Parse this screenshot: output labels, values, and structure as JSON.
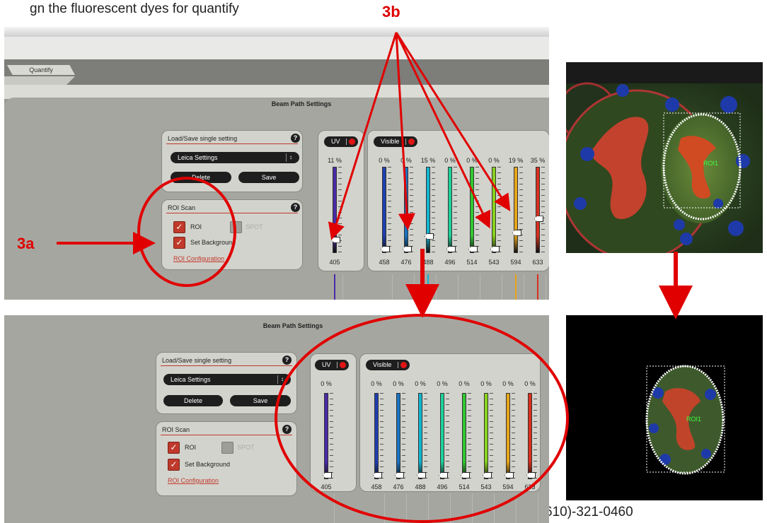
{
  "caption": {
    "top": "gn the    fluorescent dyes for quantify",
    "phone": "610)-321-0460"
  },
  "annotations": {
    "label_3a": "3a",
    "label_3b": "3b"
  },
  "app": {
    "tab_label": "Quantify"
  },
  "beam_path": {
    "title": "Beam Path Settings",
    "load_save": {
      "header": "Load/Save single setting",
      "help": "?",
      "dropdown_value": "Leica Settings",
      "dropdown_arrow": "↕",
      "delete_label": "Delete",
      "save_label": "Save"
    },
    "roi_scan": {
      "header": "ROI Scan",
      "help": "?",
      "roi_label": "ROI",
      "spot_label": "SPOT",
      "background_label": "Set Background",
      "config_link": "ROI Configuration",
      "roi_checked": true,
      "spot_checked": false,
      "background_checked": true
    },
    "uv": {
      "label": "UV",
      "wavelength": "405",
      "color": "#4a2aa6"
    },
    "visible": {
      "label": "Visible",
      "lasers": [
        {
          "wavelength": "458",
          "color": "#1f3fb0"
        },
        {
          "wavelength": "476",
          "color": "#1a73c0"
        },
        {
          "wavelength": "488",
          "color": "#12b5cf"
        },
        {
          "wavelength": "496",
          "color": "#1ed19a"
        },
        {
          "wavelength": "514",
          "color": "#32c832"
        },
        {
          "wavelength": "543",
          "color": "#8ad21e"
        },
        {
          "wavelength": "594",
          "color": "#e8a51a"
        },
        {
          "wavelength": "633",
          "color": "#d7301f"
        }
      ]
    }
  },
  "before": {
    "uv_percent": "11 %",
    "uv_level": 0.11,
    "visible_percents": [
      "0 %",
      "0 %",
      "15 %",
      "0 %",
      "0 %",
      "0 %",
      "19 %",
      "35 %"
    ],
    "visible_levels": [
      0,
      0,
      0.15,
      0,
      0,
      0,
      0.19,
      0.35
    ]
  },
  "after": {
    "uv_percent": "0 %",
    "uv_level": 0,
    "visible_percents": [
      "0 %",
      "0 %",
      "0 %",
      "0 %",
      "0 %",
      "0 %",
      "0 %",
      "0 %"
    ],
    "visible_levels": [
      0,
      0,
      0,
      0,
      0,
      0,
      0,
      0
    ]
  },
  "images": {
    "roi_label_top": "ROI1",
    "roi_label_bottom": "ROI1"
  }
}
